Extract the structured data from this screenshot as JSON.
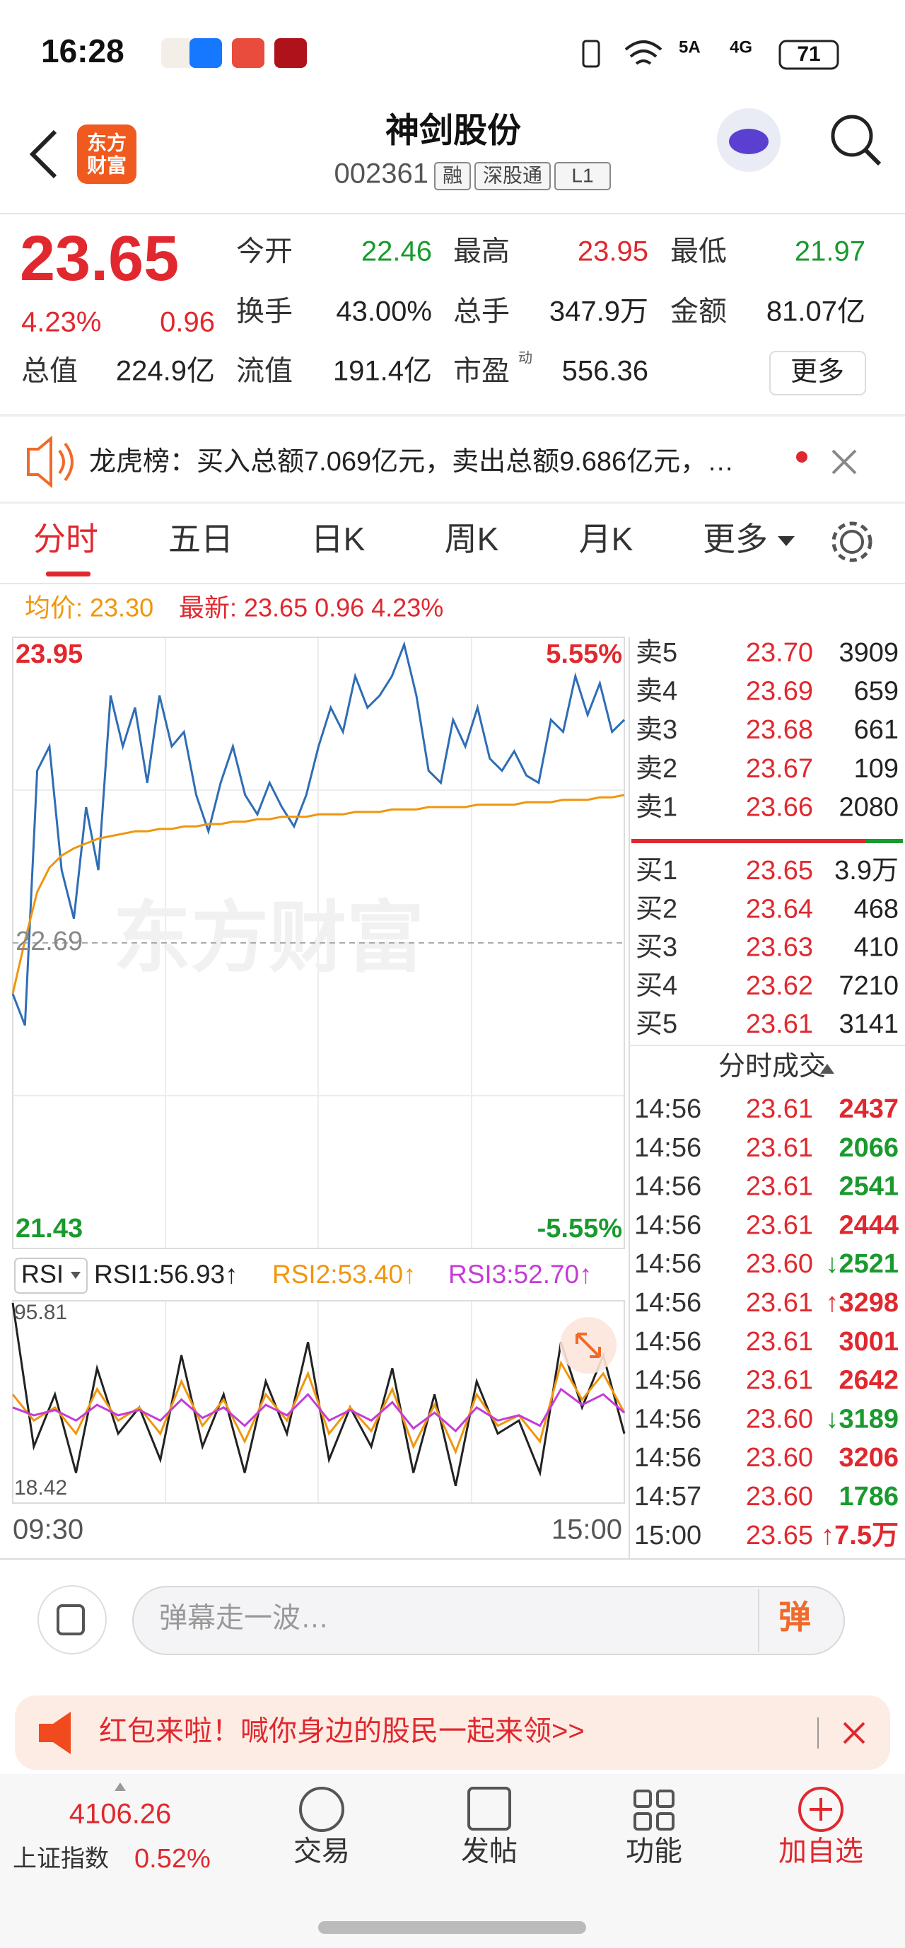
{
  "status_bar": {
    "time": "16:28",
    "network_1": "5A",
    "network_2": "4G",
    "battery": "71"
  },
  "header": {
    "logo": [
      "东方",
      "财富"
    ],
    "title": "神剑股份",
    "code": "002361",
    "tags": [
      "融",
      "深股通",
      "L1"
    ]
  },
  "quote": {
    "price": "23.65",
    "change_pct": "4.23%",
    "change": "0.96",
    "fields": [
      {
        "label": "今开",
        "value": "22.46",
        "color": "#1a9a2e"
      },
      {
        "label": "最高",
        "value": "23.95",
        "color": "#e0282e"
      },
      {
        "label": "最低",
        "value": "21.97",
        "color": "#1a9a2e"
      },
      {
        "label": "换手",
        "value": "43.00%"
      },
      {
        "label": "总手",
        "value": "347.9万"
      },
      {
        "label": "金额",
        "value": "81.07亿"
      },
      {
        "label": "总值",
        "value": "224.9亿"
      },
      {
        "label": "流值",
        "value": "191.4亿"
      },
      {
        "label": "市盈",
        "value": "556.36",
        "sup": "动"
      }
    ],
    "more": "更多"
  },
  "notice": "龙虎榜：买入总额7.069亿元，卖出总额9.686亿元，…",
  "tabs": [
    "分时",
    "五日",
    "日K",
    "周K",
    "月K",
    "更多"
  ],
  "legend": {
    "avg": "均价: 23.30",
    "latest": "最新: 23.65 0.96 4.23%"
  },
  "chart_data": [
    {
      "type": "line",
      "watermark": "东方财富",
      "ylim": [
        21.43,
        23.95
      ],
      "yticks": [
        23.95,
        22.69,
        21.43
      ],
      "y2lim": [
        -5.55,
        5.55
      ],
      "y2ticks": [
        {
          "value": 5.55,
          "label": "5.55%"
        },
        {
          "value": -5.55,
          "label": "-5.55%"
        }
      ],
      "series": [
        {
          "name": "最新",
          "color": "#2f6db5",
          "values": [
            22.48,
            22.35,
            23.4,
            23.5,
            22.99,
            22.79,
            23.25,
            22.99,
            23.71,
            23.5,
            23.66,
            23.35,
            23.71,
            23.5,
            23.56,
            23.3,
            23.15,
            23.35,
            23.5,
            23.3,
            23.22,
            23.35,
            23.25,
            23.17,
            23.3,
            23.5,
            23.66,
            23.56,
            23.79,
            23.66,
            23.71,
            23.79,
            23.92,
            23.71,
            23.4,
            23.35,
            23.61,
            23.5,
            23.66,
            23.45,
            23.4,
            23.48,
            23.38,
            23.35,
            23.61,
            23.56,
            23.79,
            23.63,
            23.76,
            23.56,
            23.61
          ]
        },
        {
          "name": "均价",
          "color": "#f0960e",
          "values": [
            22.48,
            22.7,
            22.9,
            23.0,
            23.05,
            23.08,
            23.1,
            23.12,
            23.13,
            23.14,
            23.15,
            23.15,
            23.16,
            23.16,
            23.17,
            23.17,
            23.18,
            23.18,
            23.19,
            23.19,
            23.2,
            23.2,
            23.21,
            23.21,
            23.21,
            23.22,
            23.22,
            23.22,
            23.23,
            23.23,
            23.23,
            23.24,
            23.24,
            23.24,
            23.25,
            23.25,
            23.25,
            23.25,
            23.26,
            23.26,
            23.26,
            23.26,
            23.27,
            23.27,
            23.27,
            23.28,
            23.28,
            23.28,
            23.29,
            23.29,
            23.3
          ]
        }
      ]
    },
    {
      "type": "line",
      "indicator": "RSI",
      "ylim": [
        18.42,
        95.81
      ],
      "yticks": [
        95.81,
        18.42
      ],
      "x_labels": [
        "09:30",
        "15:00"
      ],
      "series": [
        {
          "name": "RSI1:56.93↑",
          "color": "#222222",
          "values": [
            95,
            40,
            60,
            30,
            70,
            45,
            55,
            35,
            75,
            40,
            60,
            30,
            65,
            45,
            80,
            35,
            55,
            40,
            70,
            30,
            60,
            25,
            65,
            45,
            50,
            30,
            80,
            55,
            75,
            45
          ]
        },
        {
          "name": "RSI2:53.40↑",
          "color": "#f0960e",
          "values": [
            60,
            50,
            55,
            45,
            62,
            50,
            55,
            45,
            65,
            48,
            58,
            42,
            60,
            50,
            68,
            45,
            55,
            46,
            62,
            40,
            56,
            38,
            60,
            48,
            52,
            42,
            72,
            58,
            68,
            53
          ]
        },
        {
          "name": "RSI3:52.70↑",
          "color": "#c43bd6",
          "values": [
            55,
            52,
            54,
            50,
            56,
            52,
            54,
            50,
            58,
            51,
            55,
            48,
            56,
            52,
            60,
            50,
            54,
            50,
            57,
            47,
            53,
            46,
            55,
            50,
            52,
            48,
            62,
            56,
            60,
            53
          ]
        }
      ]
    }
  ],
  "order_book": {
    "asks": [
      [
        "卖5",
        "23.70",
        "3909"
      ],
      [
        "卖4",
        "23.69",
        "659"
      ],
      [
        "卖3",
        "23.68",
        "661"
      ],
      [
        "卖2",
        "23.67",
        "109"
      ],
      [
        "卖1",
        "23.66",
        "2080"
      ]
    ],
    "bids": [
      [
        "买1",
        "23.65",
        "3.9万"
      ],
      [
        "买2",
        "23.64",
        "468"
      ],
      [
        "买3",
        "23.63",
        "410"
      ],
      [
        "买4",
        "23.62",
        "7210"
      ],
      [
        "买5",
        "23.61",
        "3141"
      ]
    ]
  },
  "trades": {
    "title": "分时成交",
    "rows": [
      {
        "time": "14:56",
        "price": "23.61",
        "volume": "2437",
        "color": "#e0282e"
      },
      {
        "time": "14:56",
        "price": "23.61",
        "volume": "2066",
        "color": "#1a9a2e"
      },
      {
        "time": "14:56",
        "price": "23.61",
        "volume": "2541",
        "color": "#1a9a2e"
      },
      {
        "time": "14:56",
        "price": "23.61",
        "volume": "2444",
        "color": "#e0282e"
      },
      {
        "time": "14:56",
        "price": "23.60",
        "volume": "↓2521",
        "color": "#1a9a2e"
      },
      {
        "time": "14:56",
        "price": "23.61",
        "volume": "↑3298",
        "color": "#e0282e"
      },
      {
        "time": "14:56",
        "price": "23.61",
        "volume": "3001",
        "color": "#e0282e"
      },
      {
        "time": "14:56",
        "price": "23.61",
        "volume": "2642",
        "color": "#e0282e"
      },
      {
        "time": "14:56",
        "price": "23.60",
        "volume": "↓3189",
        "color": "#1a9a2e"
      },
      {
        "time": "14:56",
        "price": "23.60",
        "volume": "3206",
        "color": "#e0282e"
      },
      {
        "time": "14:57",
        "price": "23.60",
        "volume": "1786",
        "color": "#1a9a2e"
      },
      {
        "time": "15:00",
        "price": "23.65",
        "volume": "↑7.5万",
        "color": "#e0282e"
      }
    ]
  },
  "comment": {
    "placeholder": "弹幕走一波…",
    "button": "弹"
  },
  "banner": "红包来啦！喊你身边的股民一起来领>>",
  "nav": {
    "index_value": "4106.26",
    "index_name": "上证指数",
    "index_change": "0.52%",
    "items": [
      "交易",
      "发帖",
      "功能",
      "加自选"
    ]
  }
}
